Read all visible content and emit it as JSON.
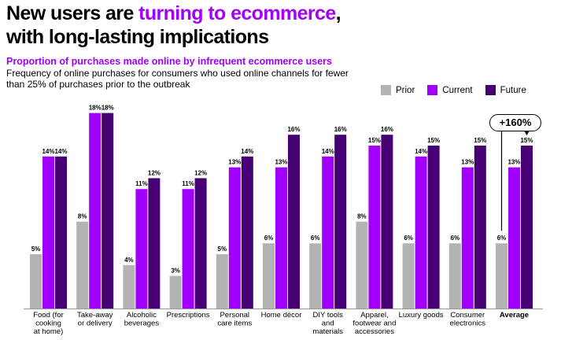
{
  "header": {
    "title_part1": "New users are ",
    "title_accent": "turning to ecommerce",
    "title_part2": ",",
    "title_line2": "with long-lasting implications",
    "subtitle": "Proportion of purchases made online by infrequent ecommerce users",
    "description": "Frequency of online purchases for consumers who used online channels for fewer than 25% of purchases prior to the outbreak"
  },
  "callout": "+160%",
  "colors": {
    "prior": "#b3b3b3",
    "current": "#a100ff",
    "future": "#460073",
    "accent": "#a100ff"
  },
  "chart_data": {
    "type": "bar",
    "categories": [
      [
        "Food (for",
        "cooking",
        "at home)"
      ],
      [
        "Take-away",
        "or delivery"
      ],
      [
        "Alcoholic",
        "beverages"
      ],
      [
        "Prescriptions"
      ],
      [
        "Personal",
        "care items"
      ],
      [
        "Home décor"
      ],
      [
        "DIY tools",
        "and",
        "materials"
      ],
      [
        "Apparel,",
        "footwear and",
        "accessories"
      ],
      [
        "Luxury  goods"
      ],
      [
        "Consumer",
        "electronics"
      ],
      [
        "Average"
      ]
    ],
    "series": [
      {
        "name": "Prior",
        "values": [
          5,
          8,
          4,
          3,
          5,
          6,
          6,
          8,
          6,
          6,
          6
        ]
      },
      {
        "name": "Current",
        "values": [
          14,
          18,
          11,
          11,
          13,
          13,
          14,
          15,
          14,
          13,
          13
        ]
      },
      {
        "name": "Future",
        "values": [
          14,
          18,
          12,
          12,
          14,
          16,
          16,
          16,
          15,
          15,
          15
        ]
      }
    ],
    "value_suffix": "%",
    "ylim": [
      0,
      19
    ],
    "legend_position": "top-right",
    "grid": false
  }
}
